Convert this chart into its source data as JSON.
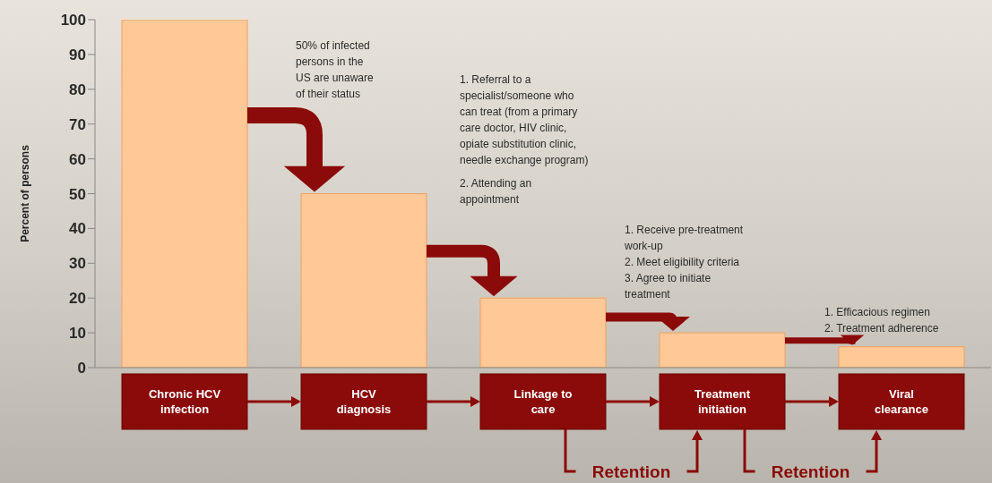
{
  "chart_data": {
    "type": "bar",
    "ylabel": "Percent of persons",
    "categories": [
      "Chronic HCV infection",
      "HCV diagnosis",
      "Linkage to care",
      "Treatment initiation",
      "Viral clearance"
    ],
    "values": [
      100,
      50,
      20,
      10,
      6
    ],
    "color": "#ffc896",
    "ylim": [
      0,
      100
    ],
    "yticks": [
      0,
      10,
      20,
      30,
      40,
      50,
      60,
      70,
      80,
      90,
      100
    ],
    "annotations": [
      "50% of infected\npersons in the\nUS are unaware\nof their status",
      "1. Referral to a\nspecialist/someone who\ncan treat (from a primary\ncare doctor, HIV clinic,\nopiate substitution clinic,\nneedle exchange program)",
      "2. Attending an\nappointment",
      "1. Receive pre-treatment\nwork-up\n2. Meet eligibility criteria\n3. Agree to initiate\ntreatment",
      "1. Efficacious regimen\n2. Treatment adherence",
      "Retention",
      "Retention"
    ]
  }
}
